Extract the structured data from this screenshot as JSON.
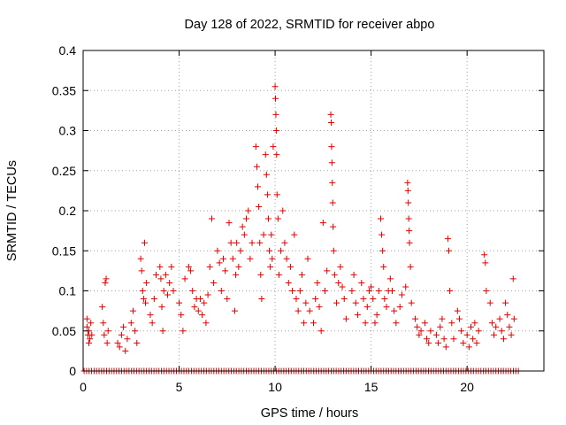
{
  "chart_data": {
    "type": "scatter",
    "title": "Day 128 of 2022, SRMTID for receiver abpo",
    "xlabel": "GPS time / hours",
    "ylabel": "SRMTID / TECUs",
    "xlim": [
      0,
      24
    ],
    "ylim": [
      0,
      0.4
    ],
    "xticks": [
      0,
      5,
      10,
      15,
      20
    ],
    "xtick_labels": [
      "0",
      "5",
      "10",
      "15",
      "20"
    ],
    "yticks": [
      0,
      0.05,
      0.1,
      0.15,
      0.2,
      0.25,
      0.3,
      0.35,
      0.4
    ],
    "ytick_labels": [
      "0",
      "0.05",
      "0.1",
      "0.15",
      "0.2",
      "0.25",
      "0.3",
      "0.35",
      "0.4"
    ],
    "grid": true,
    "marker": "+",
    "color": "#e00000",
    "series": [
      {
        "name": "SRMTID",
        "points": [
          [
            0.2,
            0.065
          ],
          [
            0.2,
            0.055
          ],
          [
            0.25,
            0.045
          ],
          [
            0.3,
            0.035
          ],
          [
            0.3,
            0.05
          ],
          [
            0.35,
            0.04
          ],
          [
            0.4,
            0.06
          ],
          [
            0.45,
            0.045
          ],
          [
            1.0,
            0.08
          ],
          [
            1.05,
            0.06
          ],
          [
            1.1,
            0.045
          ],
          [
            1.15,
            0.11
          ],
          [
            1.2,
            0.115
          ],
          [
            1.25,
            0.035
          ],
          [
            1.3,
            0.05
          ],
          [
            1.8,
            0.035
          ],
          [
            1.9,
            0.03
          ],
          [
            2.0,
            0.045
          ],
          [
            2.1,
            0.055
          ],
          [
            2.2,
            0.025
          ],
          [
            2.3,
            0.04
          ],
          [
            2.5,
            0.06
          ],
          [
            2.6,
            0.075
          ],
          [
            2.7,
            0.05
          ],
          [
            2.8,
            0.035
          ],
          [
            3.0,
            0.14
          ],
          [
            3.05,
            0.125
          ],
          [
            3.1,
            0.1
          ],
          [
            3.15,
            0.09
          ],
          [
            3.2,
            0.16
          ],
          [
            3.25,
            0.085
          ],
          [
            3.3,
            0.11
          ],
          [
            3.5,
            0.07
          ],
          [
            3.6,
            0.06
          ],
          [
            3.7,
            0.09
          ],
          [
            3.8,
            0.12
          ],
          [
            4.0,
            0.13
          ],
          [
            4.05,
            0.115
          ],
          [
            4.1,
            0.08
          ],
          [
            4.15,
            0.05
          ],
          [
            4.2,
            0.1
          ],
          [
            4.3,
            0.12
          ],
          [
            4.4,
            0.095
          ],
          [
            4.5,
            0.11
          ],
          [
            4.6,
            0.13
          ],
          [
            4.7,
            0.1
          ],
          [
            5.0,
            0.085
          ],
          [
            5.1,
            0.07
          ],
          [
            5.2,
            0.05
          ],
          [
            5.3,
            0.115
          ],
          [
            5.5,
            0.13
          ],
          [
            5.6,
            0.125
          ],
          [
            5.7,
            0.1
          ],
          [
            5.8,
            0.08
          ],
          [
            5.9,
            0.09
          ],
          [
            6.0,
            0.075
          ],
          [
            6.1,
            0.09
          ],
          [
            6.2,
            0.07
          ],
          [
            6.3,
            0.085
          ],
          [
            6.4,
            0.06
          ],
          [
            6.5,
            0.095
          ],
          [
            6.6,
            0.13
          ],
          [
            6.7,
            0.19
          ],
          [
            6.8,
            0.11
          ],
          [
            7.0,
            0.15
          ],
          [
            7.1,
            0.135
          ],
          [
            7.2,
            0.1
          ],
          [
            7.3,
            0.14
          ],
          [
            7.4,
            0.125
          ],
          [
            7.5,
            0.09
          ],
          [
            7.6,
            0.185
          ],
          [
            7.7,
            0.16
          ],
          [
            7.8,
            0.14
          ],
          [
            7.9,
            0.075
          ],
          [
            7.95,
            0.12
          ],
          [
            8.0,
            0.16
          ],
          [
            8.1,
            0.13
          ],
          [
            8.2,
            0.15
          ],
          [
            8.3,
            0.18
          ],
          [
            8.4,
            0.17
          ],
          [
            8.5,
            0.19
          ],
          [
            8.6,
            0.2
          ],
          [
            8.7,
            0.14
          ],
          [
            8.8,
            0.16
          ],
          [
            9.0,
            0.28
          ],
          [
            9.05,
            0.255
          ],
          [
            9.1,
            0.23
          ],
          [
            9.15,
            0.205
          ],
          [
            9.2,
            0.16
          ],
          [
            9.25,
            0.12
          ],
          [
            9.3,
            0.09
          ],
          [
            9.4,
            0.17
          ],
          [
            9.5,
            0.27
          ],
          [
            9.55,
            0.245
          ],
          [
            9.6,
            0.22
          ],
          [
            9.65,
            0.19
          ],
          [
            9.7,
            0.15
          ],
          [
            9.75,
            0.13
          ],
          [
            9.8,
            0.17
          ],
          [
            9.85,
            0.14
          ],
          [
            9.9,
            0.28
          ],
          [
            10.0,
            0.355
          ],
          [
            10.02,
            0.34
          ],
          [
            10.04,
            0.32
          ],
          [
            10.06,
            0.3
          ],
          [
            10.08,
            0.27
          ],
          [
            10.1,
            0.22
          ],
          [
            10.15,
            0.19
          ],
          [
            10.2,
            0.12
          ],
          [
            10.3,
            0.15
          ],
          [
            10.4,
            0.2
          ],
          [
            10.5,
            0.16
          ],
          [
            10.6,
            0.14
          ],
          [
            10.7,
            0.11
          ],
          [
            10.8,
            0.13
          ],
          [
            10.9,
            0.1
          ],
          [
            11.0,
            0.17
          ],
          [
            11.1,
            0.09
          ],
          [
            11.2,
            0.075
          ],
          [
            11.3,
            0.1
          ],
          [
            11.4,
            0.12
          ],
          [
            11.5,
            0.06
          ],
          [
            11.6,
            0.085
          ],
          [
            11.7,
            0.14
          ],
          [
            11.8,
            0.075
          ],
          [
            12.0,
            0.06
          ],
          [
            12.1,
            0.09
          ],
          [
            12.2,
            0.11
          ],
          [
            12.3,
            0.08
          ],
          [
            12.4,
            0.05
          ],
          [
            12.5,
            0.185
          ],
          [
            12.6,
            0.1
          ],
          [
            12.7,
            0.125
          ],
          [
            12.9,
            0.32
          ],
          [
            12.92,
            0.31
          ],
          [
            12.94,
            0.28
          ],
          [
            12.96,
            0.26
          ],
          [
            12.98,
            0.235
          ],
          [
            13.0,
            0.21
          ],
          [
            13.02,
            0.18
          ],
          [
            13.05,
            0.15
          ],
          [
            13.1,
            0.12
          ],
          [
            13.2,
            0.085
          ],
          [
            13.3,
            0.11
          ],
          [
            13.4,
            0.13
          ],
          [
            13.5,
            0.105
          ],
          [
            13.6,
            0.09
          ],
          [
            13.7,
            0.065
          ],
          [
            14.0,
            0.1
          ],
          [
            14.1,
            0.12
          ],
          [
            14.2,
            0.085
          ],
          [
            14.3,
            0.07
          ],
          [
            14.5,
            0.11
          ],
          [
            14.6,
            0.09
          ],
          [
            14.7,
            0.06
          ],
          [
            14.8,
            0.08
          ],
          [
            14.9,
            0.1
          ],
          [
            15.0,
            0.105
          ],
          [
            15.1,
            0.09
          ],
          [
            15.2,
            0.06
          ],
          [
            15.3,
            0.07
          ],
          [
            15.4,
            0.1
          ],
          [
            15.5,
            0.19
          ],
          [
            15.55,
            0.17
          ],
          [
            15.6,
            0.15
          ],
          [
            15.65,
            0.13
          ],
          [
            15.7,
            0.09
          ],
          [
            15.8,
            0.08
          ],
          [
            15.9,
            0.1
          ],
          [
            16.0,
            0.115
          ],
          [
            16.1,
            0.1
          ],
          [
            16.2,
            0.075
          ],
          [
            16.3,
            0.06
          ],
          [
            16.5,
            0.08
          ],
          [
            16.6,
            0.095
          ],
          [
            16.8,
            0.105
          ],
          [
            16.9,
            0.235
          ],
          [
            16.92,
            0.225
          ],
          [
            16.94,
            0.21
          ],
          [
            16.96,
            0.19
          ],
          [
            16.98,
            0.175
          ],
          [
            17.0,
            0.16
          ],
          [
            17.05,
            0.13
          ],
          [
            17.1,
            0.085
          ],
          [
            17.3,
            0.065
          ],
          [
            17.4,
            0.055
          ],
          [
            17.5,
            0.045
          ],
          [
            17.6,
            0.05
          ],
          [
            17.8,
            0.06
          ],
          [
            17.9,
            0.04
          ],
          [
            18.0,
            0.035
          ],
          [
            18.1,
            0.05
          ],
          [
            18.4,
            0.045
          ],
          [
            18.5,
            0.035
          ],
          [
            18.6,
            0.055
          ],
          [
            18.7,
            0.065
          ],
          [
            18.8,
            0.04
          ],
          [
            18.9,
            0.03
          ],
          [
            19.0,
            0.165
          ],
          [
            19.05,
            0.15
          ],
          [
            19.1,
            0.1
          ],
          [
            19.2,
            0.06
          ],
          [
            19.3,
            0.04
          ],
          [
            19.5,
            0.075
          ],
          [
            19.6,
            0.065
          ],
          [
            19.7,
            0.05
          ],
          [
            19.8,
            0.035
          ],
          [
            20.0,
            0.045
          ],
          [
            20.1,
            0.03
          ],
          [
            20.2,
            0.055
          ],
          [
            20.3,
            0.04
          ],
          [
            20.4,
            0.06
          ],
          [
            20.5,
            0.035
          ],
          [
            20.6,
            0.05
          ],
          [
            20.9,
            0.145
          ],
          [
            20.95,
            0.135
          ],
          [
            21.0,
            0.1
          ],
          [
            21.2,
            0.085
          ],
          [
            21.3,
            0.06
          ],
          [
            21.4,
            0.045
          ],
          [
            21.5,
            0.055
          ],
          [
            21.7,
            0.065
          ],
          [
            21.8,
            0.05
          ],
          [
            21.9,
            0.04
          ],
          [
            22.0,
            0.085
          ],
          [
            22.1,
            0.07
          ],
          [
            22.2,
            0.055
          ],
          [
            22.3,
            0.045
          ],
          [
            22.4,
            0.115
          ],
          [
            22.45,
            0.065
          ]
        ]
      }
    ]
  }
}
